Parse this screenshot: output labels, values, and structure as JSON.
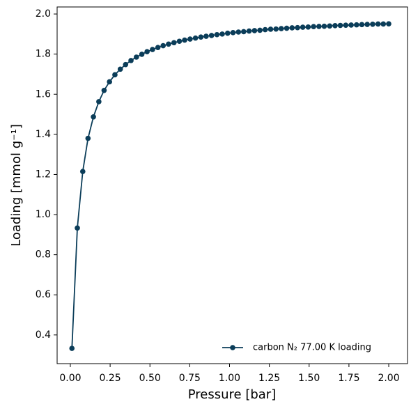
{
  "chart_data": {
    "type": "line",
    "x_label": "Pressure [bar]",
    "y_label": "Loading [mmol g⁻¹]",
    "x": [
      0.01,
      0.044,
      0.078,
      0.111,
      0.145,
      0.179,
      0.212,
      0.246,
      0.28,
      0.314,
      0.347,
      0.381,
      0.415,
      0.449,
      0.482,
      0.516,
      0.55,
      0.583,
      0.617,
      0.651,
      0.685,
      0.718,
      0.752,
      0.786,
      0.82,
      0.853,
      0.887,
      0.921,
      0.954,
      0.988,
      1.022,
      1.056,
      1.089,
      1.123,
      1.157,
      1.191,
      1.224,
      1.258,
      1.292,
      1.325,
      1.359,
      1.393,
      1.427,
      1.46,
      1.494,
      1.528,
      1.562,
      1.595,
      1.629,
      1.663,
      1.696,
      1.73,
      1.764,
      1.798,
      1.831,
      1.865,
      1.899,
      1.933,
      1.966,
      2.0
    ],
    "series": [
      {
        "name": "carbon N₂ 77.00 K loading",
        "color": "#0b3d59",
        "values": [
          0.333,
          0.933,
          1.215,
          1.38,
          1.487,
          1.563,
          1.619,
          1.662,
          1.697,
          1.725,
          1.748,
          1.768,
          1.785,
          1.799,
          1.812,
          1.823,
          1.833,
          1.842,
          1.85,
          1.857,
          1.864,
          1.87,
          1.875,
          1.88,
          1.885,
          1.889,
          1.893,
          1.897,
          1.9,
          1.904,
          1.907,
          1.91,
          1.912,
          1.915,
          1.917,
          1.919,
          1.922,
          1.924,
          1.925,
          1.927,
          1.929,
          1.931,
          1.932,
          1.934,
          1.935,
          1.937,
          1.938,
          1.939,
          1.94,
          1.942,
          1.943,
          1.944,
          1.945,
          1.946,
          1.947,
          1.948,
          1.949,
          1.95,
          1.95,
          1.951
        ]
      }
    ],
    "xlim": [
      -0.083,
      2.118
    ],
    "ylim": [
      0.257,
      2.035
    ],
    "xticks": [
      {
        "value": 0,
        "label": "0.00"
      },
      {
        "value": 0.25,
        "label": "0.25"
      },
      {
        "value": 0.5,
        "label": "0.50"
      },
      {
        "value": 0.75,
        "label": "0.75"
      },
      {
        "value": 1,
        "label": "1.00"
      },
      {
        "value": 1.25,
        "label": "1.25"
      },
      {
        "value": 1.5,
        "label": "1.50"
      },
      {
        "value": 1.75,
        "label": "1.75"
      },
      {
        "value": 2,
        "label": "2.00"
      }
    ],
    "yticks": [
      0.4,
      0.6,
      0.8,
      {
        "value": 1,
        "label": "1.0"
      },
      1.2,
      1.4,
      1.6,
      1.8,
      {
        "value": 2,
        "label": "2.0"
      }
    ],
    "grid": false,
    "legend_loc": "lower right"
  }
}
